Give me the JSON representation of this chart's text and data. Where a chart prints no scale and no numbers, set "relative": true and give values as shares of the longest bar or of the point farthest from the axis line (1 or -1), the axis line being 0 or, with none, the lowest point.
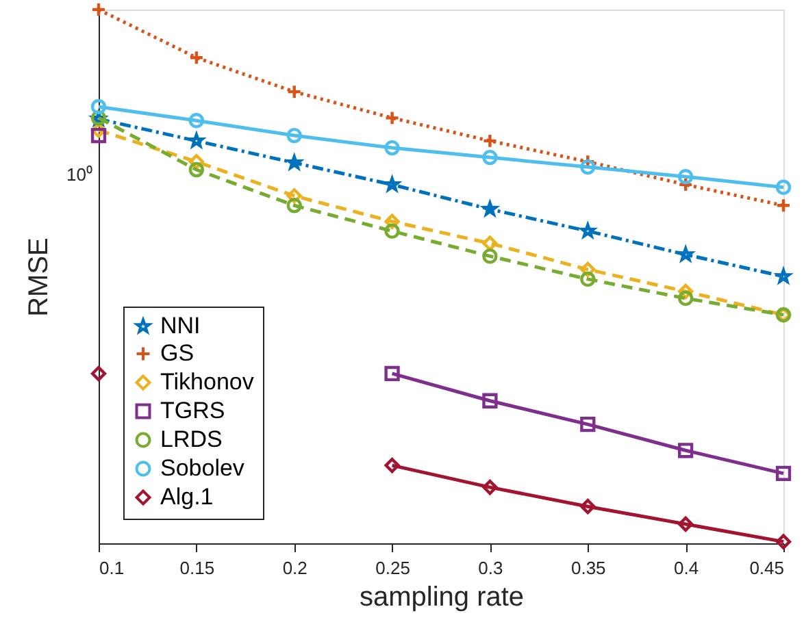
{
  "chart_data": {
    "type": "line",
    "xlabel": "sampling rate",
    "ylabel": "RMSE",
    "relative": true,
    "annotations": [
      "10⁰"
    ],
    "x": [
      0.1,
      0.15,
      0.2,
      0.25,
      0.3,
      0.35,
      0.4,
      0.45
    ],
    "xlim": [
      0.1,
      0.45
    ],
    "xticks": [
      0.1,
      0.15,
      0.2,
      0.25,
      0.3,
      0.35,
      0.4,
      0.45
    ],
    "grid": false,
    "legend": "bottom left",
    "series": [
      {
        "name": "NNI",
        "color": "#0072bd",
        "line_style": "dashdot",
        "marker": "star",
        "values": [
          0.795,
          0.754,
          0.713,
          0.672,
          0.626,
          0.585,
          0.541,
          0.5
        ]
      },
      {
        "name": "GS",
        "color": "#d95319",
        "line_style": "dotted",
        "marker": "cross",
        "values": [
          1,
          0.91,
          0.846,
          0.797,
          0.754,
          0.715,
          0.672,
          0.633
        ]
      },
      {
        "name": "Tikhonov",
        "color": "#edb120",
        "line_style": "dashed",
        "marker": "diamond",
        "values": [
          0.774,
          0.715,
          0.651,
          0.603,
          0.562,
          0.513,
          0.472,
          0.428
        ]
      },
      {
        "name": "TGRS",
        "color": "#7e2f8e",
        "line_style": "solid",
        "marker": "square",
        "values": [
          0.764,
          null,
          null,
          0.318,
          0.267,
          0.223,
          0.174,
          0.131
        ]
      },
      {
        "name": "LRDS",
        "color": "#77ac30",
        "line_style": "dashed",
        "marker": "circle",
        "values": [
          0.797,
          0.7,
          0.633,
          0.585,
          0.538,
          0.495,
          0.459,
          0.428
        ]
      },
      {
        "name": "Sobolev",
        "color": "#4dbeee",
        "line_style": "solid",
        "marker": "circle",
        "values": [
          0.818,
          0.792,
          0.764,
          0.741,
          0.723,
          0.705,
          0.687,
          0.667
        ]
      },
      {
        "name": "Alg.1",
        "color": "#a2142f",
        "line_style": "solid",
        "marker": "diamond",
        "values": [
          0.318,
          null,
          null,
          0.146,
          0.105,
          0.069,
          0.036,
          0.003
        ]
      }
    ]
  }
}
